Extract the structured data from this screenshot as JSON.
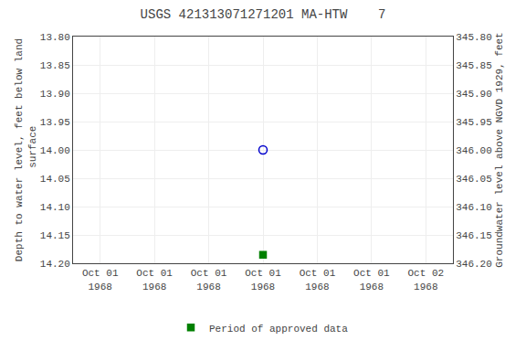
{
  "chart_data": {
    "type": "scatter",
    "title": "USGS 421313071271201 MA-HTW    7",
    "y_label": "Depth to water level, feet below land\n surface",
    "y2_label": "Groundwater level above NGVD 1929, feet",
    "categories": [
      "Oct 01\n1968",
      "Oct 01\n1968",
      "Oct 01\n1968",
      "Oct 01\n1968",
      "Oct 01\n1968",
      "Oct 01\n1968",
      "Oct 02\n1968"
    ],
    "series": [
      {
        "color": "#0000cc",
        "marker": "circle-open",
        "line_style": "none",
        "values": [
          null,
          null,
          null,
          14.0,
          null,
          null,
          null
        ]
      },
      {
        "name": "Period of approved data",
        "color": "#008000",
        "marker": "square",
        "line_style": "none",
        "values": [
          null,
          null,
          null,
          14.185,
          null,
          null,
          null
        ]
      }
    ],
    "ylim": [
      14.2,
      13.8
    ],
    "yticks": [
      {
        "value": 13.8,
        "label": "13.80"
      },
      {
        "value": 13.85,
        "label": "13.85"
      },
      {
        "value": 13.9,
        "label": "13.90"
      },
      {
        "value": 13.95,
        "label": "13.95"
      },
      {
        "value": 14.0,
        "label": "14.00"
      },
      {
        "value": 14.05,
        "label": "14.05"
      },
      {
        "value": 14.1,
        "label": "14.10"
      },
      {
        "value": 14.15,
        "label": "14.15"
      },
      {
        "value": 14.2,
        "label": "14.20"
      }
    ],
    "y2lim": [
      346.2,
      345.8
    ],
    "y2ticks": [
      {
        "value": 346.2,
        "label": "346.20"
      },
      {
        "value": 346.15,
        "label": "346.15"
      },
      {
        "value": 346.1,
        "label": "346.10"
      },
      {
        "value": 346.05,
        "label": "346.05"
      },
      {
        "value": 346.0,
        "label": "346.00"
      },
      {
        "value": 345.95,
        "label": "345.95"
      },
      {
        "value": 345.9,
        "label": "345.90"
      },
      {
        "value": 345.85,
        "label": "345.85"
      },
      {
        "value": 345.8,
        "label": "345.80"
      }
    ],
    "grid": true,
    "legend": "bottom"
  }
}
